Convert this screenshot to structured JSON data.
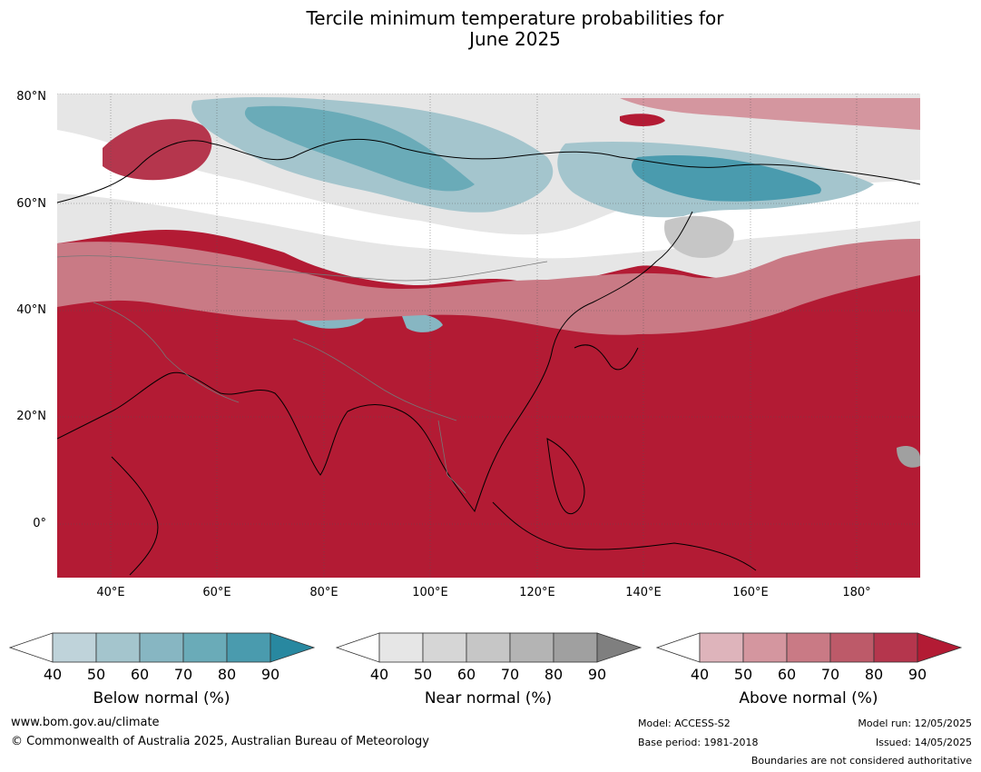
{
  "title": {
    "line1": "Tercile minimum temperature probabilities for",
    "line2": "June 2025"
  },
  "map": {
    "lat_labels": [
      "80°N",
      "60°N",
      "40°N",
      "20°N",
      "0°"
    ],
    "lon_labels": [
      "40°E",
      "60°E",
      "80°E",
      "100°E",
      "120°E",
      "140°E",
      "160°E",
      "180°"
    ],
    "extent": {
      "lon_min": 30,
      "lon_max": 192,
      "lat_min": -10,
      "lat_max": 81
    },
    "dominant_category": "above normal"
  },
  "legends": [
    {
      "label": "Below normal (%)",
      "ticks": [
        "40",
        "50",
        "60",
        "70",
        "80",
        "90"
      ],
      "colors": [
        "#ffffff",
        "#bfd3da",
        "#a4c5cd",
        "#87b6c2",
        "#6aabb8",
        "#4a9bae",
        "#2888a0"
      ]
    },
    {
      "label": "Near normal (%)",
      "ticks": [
        "40",
        "50",
        "60",
        "70",
        "80",
        "90"
      ],
      "colors": [
        "#ffffff",
        "#e6e6e6",
        "#d6d6d6",
        "#c6c6c6",
        "#b4b4b4",
        "#a0a0a0",
        "#7f7f7f"
      ]
    },
    {
      "label": "Above normal (%)",
      "ticks": [
        "40",
        "50",
        "60",
        "70",
        "80",
        "90"
      ],
      "colors": [
        "#ffffff",
        "#deb4bb",
        "#d4969f",
        "#c97a85",
        "#bd5a69",
        "#b5364d",
        "#b31b34"
      ]
    }
  ],
  "footer": {
    "website": "www.bom.gov.au/climate",
    "copyright": "© Commonwealth of Australia 2025, Australian Bureau of Meteorology",
    "model": "Model: ACCESS-S2",
    "base_period": "Base period: 1981-2018",
    "model_run": "Model run: 12/05/2025",
    "issued": "Issued: 14/05/2025",
    "disclaimer": "Boundaries are not considered authoritative"
  }
}
